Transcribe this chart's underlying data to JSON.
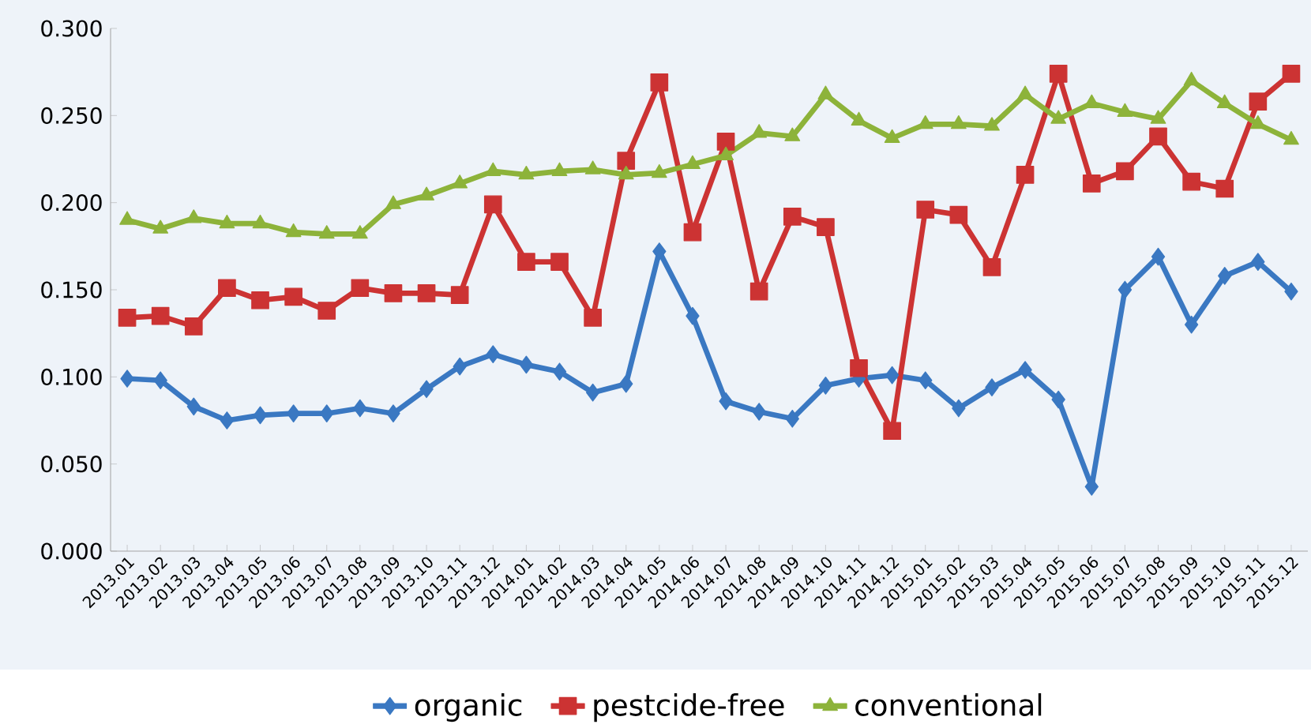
{
  "chart_data": {
    "type": "line",
    "categories": [
      "2013.01",
      "2013.02",
      "2013.03",
      "2013.04",
      "2013.05",
      "2013.06",
      "2013.07",
      "2013.08",
      "2013.09",
      "2013.10",
      "2013.11",
      "2013.12",
      "2014.01",
      "2014.02",
      "2014.03",
      "2014.04",
      "2014.05",
      "2014.06",
      "2014.07",
      "2014.08",
      "2014.09",
      "2014.10",
      "2014.11",
      "2014.12",
      "2015.01",
      "2015.02",
      "2015.03",
      "2015.04",
      "2015.05",
      "2015.06",
      "2015.07",
      "2015.08",
      "2015.09",
      "2015.10",
      "2015.11",
      "2015.12"
    ],
    "series": [
      {
        "name": "organic",
        "color": "#3a78c2",
        "marker": "diamond",
        "values": [
          0.099,
          0.098,
          0.083,
          0.075,
          0.078,
          0.079,
          0.079,
          0.082,
          0.079,
          0.093,
          0.106,
          0.113,
          0.107,
          0.103,
          0.091,
          0.096,
          0.172,
          0.135,
          0.086,
          0.08,
          0.076,
          0.095,
          0.099,
          0.101,
          0.098,
          0.082,
          0.094,
          0.104,
          0.087,
          0.037,
          0.15,
          0.169,
          0.13,
          0.158,
          0.166,
          0.149
        ]
      },
      {
        "name": "pestcide-free",
        "color": "#cc3333",
        "marker": "square",
        "values": [
          0.134,
          0.135,
          0.129,
          0.151,
          0.144,
          0.146,
          0.138,
          0.151,
          0.148,
          0.148,
          0.147,
          0.199,
          0.166,
          0.166,
          0.134,
          0.224,
          0.269,
          0.183,
          0.235,
          0.149,
          0.192,
          0.186,
          0.105,
          0.069,
          0.196,
          0.193,
          0.163,
          0.216,
          0.274,
          0.211,
          0.218,
          0.238,
          0.212,
          0.208,
          0.258,
          0.274
        ]
      },
      {
        "name": "conventional",
        "color": "#8db33a",
        "marker": "triangle",
        "values": [
          0.19,
          0.185,
          0.191,
          0.188,
          0.188,
          0.183,
          0.182,
          0.182,
          0.199,
          0.204,
          0.211,
          0.218,
          0.216,
          0.218,
          0.219,
          0.216,
          0.217,
          0.222,
          0.227,
          0.24,
          0.238,
          0.262,
          0.247,
          0.237,
          0.245,
          0.245,
          0.244,
          0.262,
          0.248,
          0.257,
          0.252,
          0.248,
          0.27,
          0.257,
          0.245,
          0.236
        ]
      }
    ],
    "ylim": [
      0,
      0.3
    ],
    "yticks": [
      {
        "value": 0,
        "label": "0.000"
      },
      {
        "value": 0.05,
        "label": "0.050"
      },
      {
        "value": 0.1,
        "label": "0.100"
      },
      {
        "value": 0.15,
        "label": "0.150"
      },
      {
        "value": 0.2,
        "label": "0.200"
      },
      {
        "value": 0.25,
        "label": "0.250"
      },
      {
        "value": 0.3,
        "label": "0.300"
      }
    ],
    "grid": false,
    "legend": "bottom",
    "line_style": "solid"
  }
}
